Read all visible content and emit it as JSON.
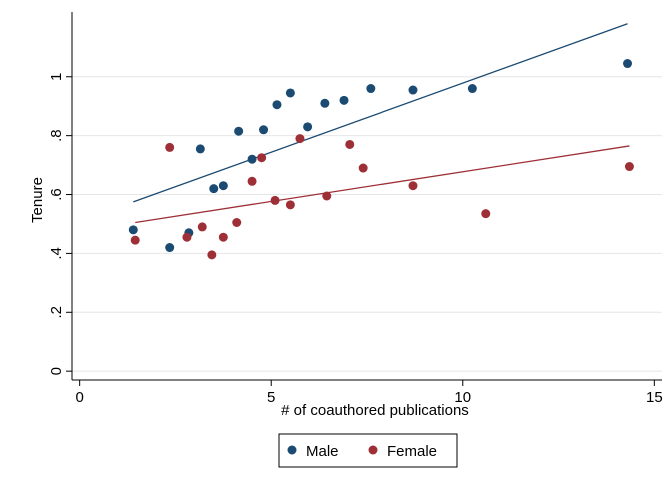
{
  "chart_data": {
    "type": "scatter",
    "xlabel": "# of coauthored publications",
    "ylabel": "Tenure",
    "xlim": [
      -0.2,
      15.2
    ],
    "ylim": [
      -0.03,
      1.22
    ],
    "xticks": [
      0,
      5,
      10,
      15
    ],
    "xtick_labels": [
      "0",
      "5",
      "10",
      "15"
    ],
    "yticks": [
      0,
      0.2,
      0.4,
      0.6,
      0.8,
      1.0
    ],
    "ytick_labels": [
      "0",
      ".2",
      ".4",
      ".6",
      ".8",
      "1"
    ],
    "grid": true,
    "legend_position": "bottom",
    "series": [
      {
        "name": "Male",
        "color": "#1b4a72",
        "points": [
          [
            1.4,
            0.48
          ],
          [
            2.35,
            0.42
          ],
          [
            2.85,
            0.47
          ],
          [
            3.15,
            0.755
          ],
          [
            3.5,
            0.62
          ],
          [
            3.75,
            0.63
          ],
          [
            4.15,
            0.815
          ],
          [
            4.5,
            0.72
          ],
          [
            4.8,
            0.82
          ],
          [
            5.15,
            0.905
          ],
          [
            5.5,
            0.945
          ],
          [
            5.95,
            0.83
          ],
          [
            6.4,
            0.91
          ],
          [
            6.9,
            0.92
          ],
          [
            7.6,
            0.96
          ],
          [
            8.7,
            0.955
          ],
          [
            10.25,
            0.96
          ],
          [
            14.3,
            1.045
          ]
        ],
        "fit": {
          "x": [
            1.4,
            14.3
          ],
          "y": [
            0.575,
            1.18
          ]
        }
      },
      {
        "name": "Female",
        "color": "#9e2f36",
        "points": [
          [
            1.45,
            0.445
          ],
          [
            2.35,
            0.76
          ],
          [
            2.8,
            0.455
          ],
          [
            3.2,
            0.49
          ],
          [
            3.45,
            0.395
          ],
          [
            3.75,
            0.455
          ],
          [
            4.1,
            0.505
          ],
          [
            4.5,
            0.645
          ],
          [
            4.75,
            0.725
          ],
          [
            5.1,
            0.58
          ],
          [
            5.5,
            0.565
          ],
          [
            5.75,
            0.79
          ],
          [
            6.45,
            0.595
          ],
          [
            7.05,
            0.77
          ],
          [
            7.4,
            0.69
          ],
          [
            8.7,
            0.63
          ],
          [
            10.6,
            0.535
          ],
          [
            14.35,
            0.695
          ]
        ],
        "fit": {
          "x": [
            1.45,
            14.35
          ],
          "y": [
            0.505,
            0.765
          ]
        }
      }
    ]
  }
}
